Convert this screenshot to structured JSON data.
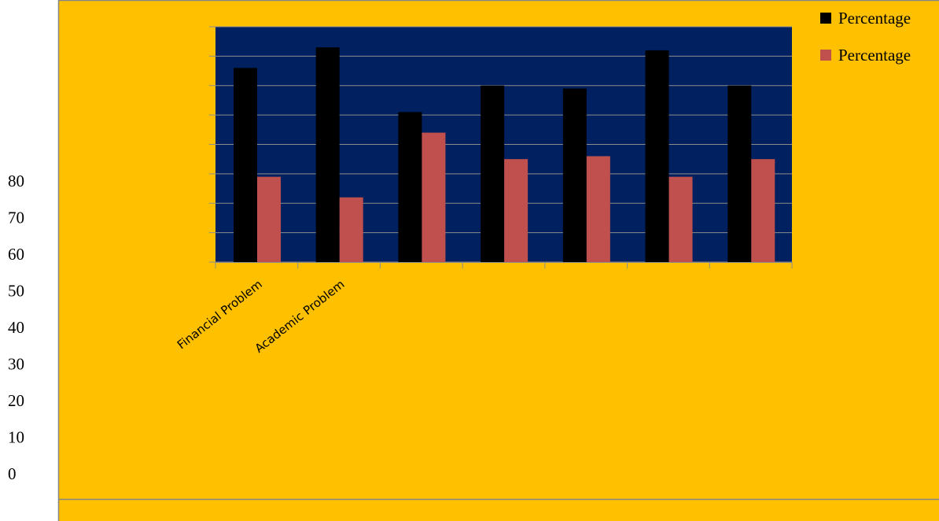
{
  "colors": {
    "background": "#FFC000",
    "plot_area": "#002060",
    "gridline": "#8C8C8C",
    "frame": "#868686",
    "series_black": "#000000",
    "series_red": "#C0504D"
  },
  "chart_data": {
    "type": "bar",
    "title": "",
    "xlabel": "",
    "ylabel": "",
    "ylim": [
      0,
      80
    ],
    "y_ticks": [
      "80",
      "70",
      "60",
      "50",
      "40",
      "30",
      "20",
      "10",
      "0"
    ],
    "grid": true,
    "legend_position": "top-right",
    "categories": [
      "Financial Problem",
      "Academic Problem",
      "",
      "",
      "",
      "",
      ""
    ],
    "series": [
      {
        "name": "Percentage",
        "color": "#000000",
        "values": [
          66,
          73,
          51,
          60,
          59,
          72,
          60
        ]
      },
      {
        "name": "Percentage",
        "color": "#C0504D",
        "values": [
          29,
          22,
          44,
          35,
          36,
          29,
          35
        ]
      }
    ]
  }
}
